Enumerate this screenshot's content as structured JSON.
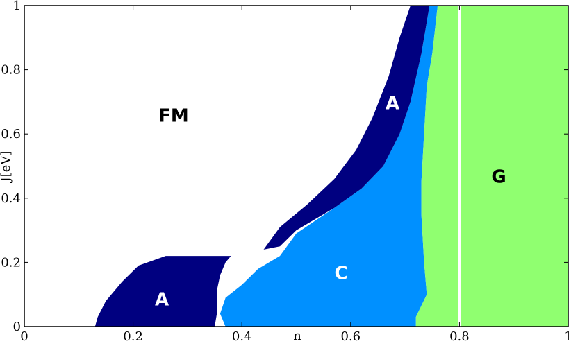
{
  "chart_data": {
    "type": "region",
    "x_label": "n",
    "y_label": "J[eV]",
    "xlim": [
      0,
      1
    ],
    "ylim": [
      0,
      1
    ],
    "xticks": [
      0,
      0.2,
      0.4,
      0.6,
      0.8,
      1
    ],
    "yticks": [
      0,
      0.2,
      0.4,
      0.6,
      0.8,
      1
    ],
    "regions": [
      {
        "name": "FM",
        "color": "#ffffff",
        "x": [
          0,
          1,
          1,
          0
        ],
        "y": [
          0,
          0,
          1,
          1
        ]
      },
      {
        "name": "C",
        "color": "#0090ff",
        "x": [
          0.37,
          0.36,
          0.37,
          0.4,
          0.43,
          0.47,
          0.5,
          0.57,
          0.62,
          0.66,
          0.69,
          0.71,
          0.73,
          0.745,
          0.76,
          0.75,
          0.74,
          0.735,
          0.73,
          0.73,
          0.735,
          0.74,
          0.72,
          0.72
        ],
        "y": [
          0,
          0.04,
          0.09,
          0.13,
          0.18,
          0.22,
          0.29,
          0.37,
          0.43,
          0.5,
          0.6,
          0.7,
          0.85,
          1,
          1,
          0.85,
          0.75,
          0.6,
          0.45,
          0.35,
          0.2,
          0.1,
          0.03,
          0
        ]
      },
      {
        "name": "A",
        "color": "#000080",
        "x": [
          0.44,
          0.47,
          0.52,
          0.57,
          0.61,
          0.64,
          0.67,
          0.69,
          0.71,
          0.745,
          0.73,
          0.71,
          0.69,
          0.66,
          0.62,
          0.57,
          0.5,
          0.47
        ],
        "y": [
          0.24,
          0.31,
          0.38,
          0.46,
          0.55,
          0.65,
          0.78,
          0.9,
          1,
          1,
          0.85,
          0.7,
          0.6,
          0.5,
          0.43,
          0.37,
          0.3,
          0.25
        ]
      },
      {
        "name": "G",
        "color": "#90ff70",
        "x": [
          0.72,
          0.72,
          0.74,
          0.735,
          0.73,
          0.73,
          0.735,
          0.74,
          0.75,
          0.76,
          1,
          1
        ],
        "y": [
          0,
          0.03,
          0.1,
          0.2,
          0.35,
          0.45,
          0.6,
          0.75,
          0.85,
          1,
          1,
          0
        ]
      },
      {
        "name": "A",
        "color": "#000080",
        "x": [
          0.13,
          0.135,
          0.15,
          0.18,
          0.21,
          0.26,
          0.38,
          0.37,
          0.36,
          0.355,
          0.355,
          0.35
        ],
        "y": [
          0,
          0.03,
          0.08,
          0.14,
          0.19,
          0.22,
          0.22,
          0.2,
          0.16,
          0.12,
          0.05,
          0
        ]
      }
    ],
    "vlines": [
      {
        "x": 0.8,
        "color": "#ffffff"
      }
    ]
  }
}
